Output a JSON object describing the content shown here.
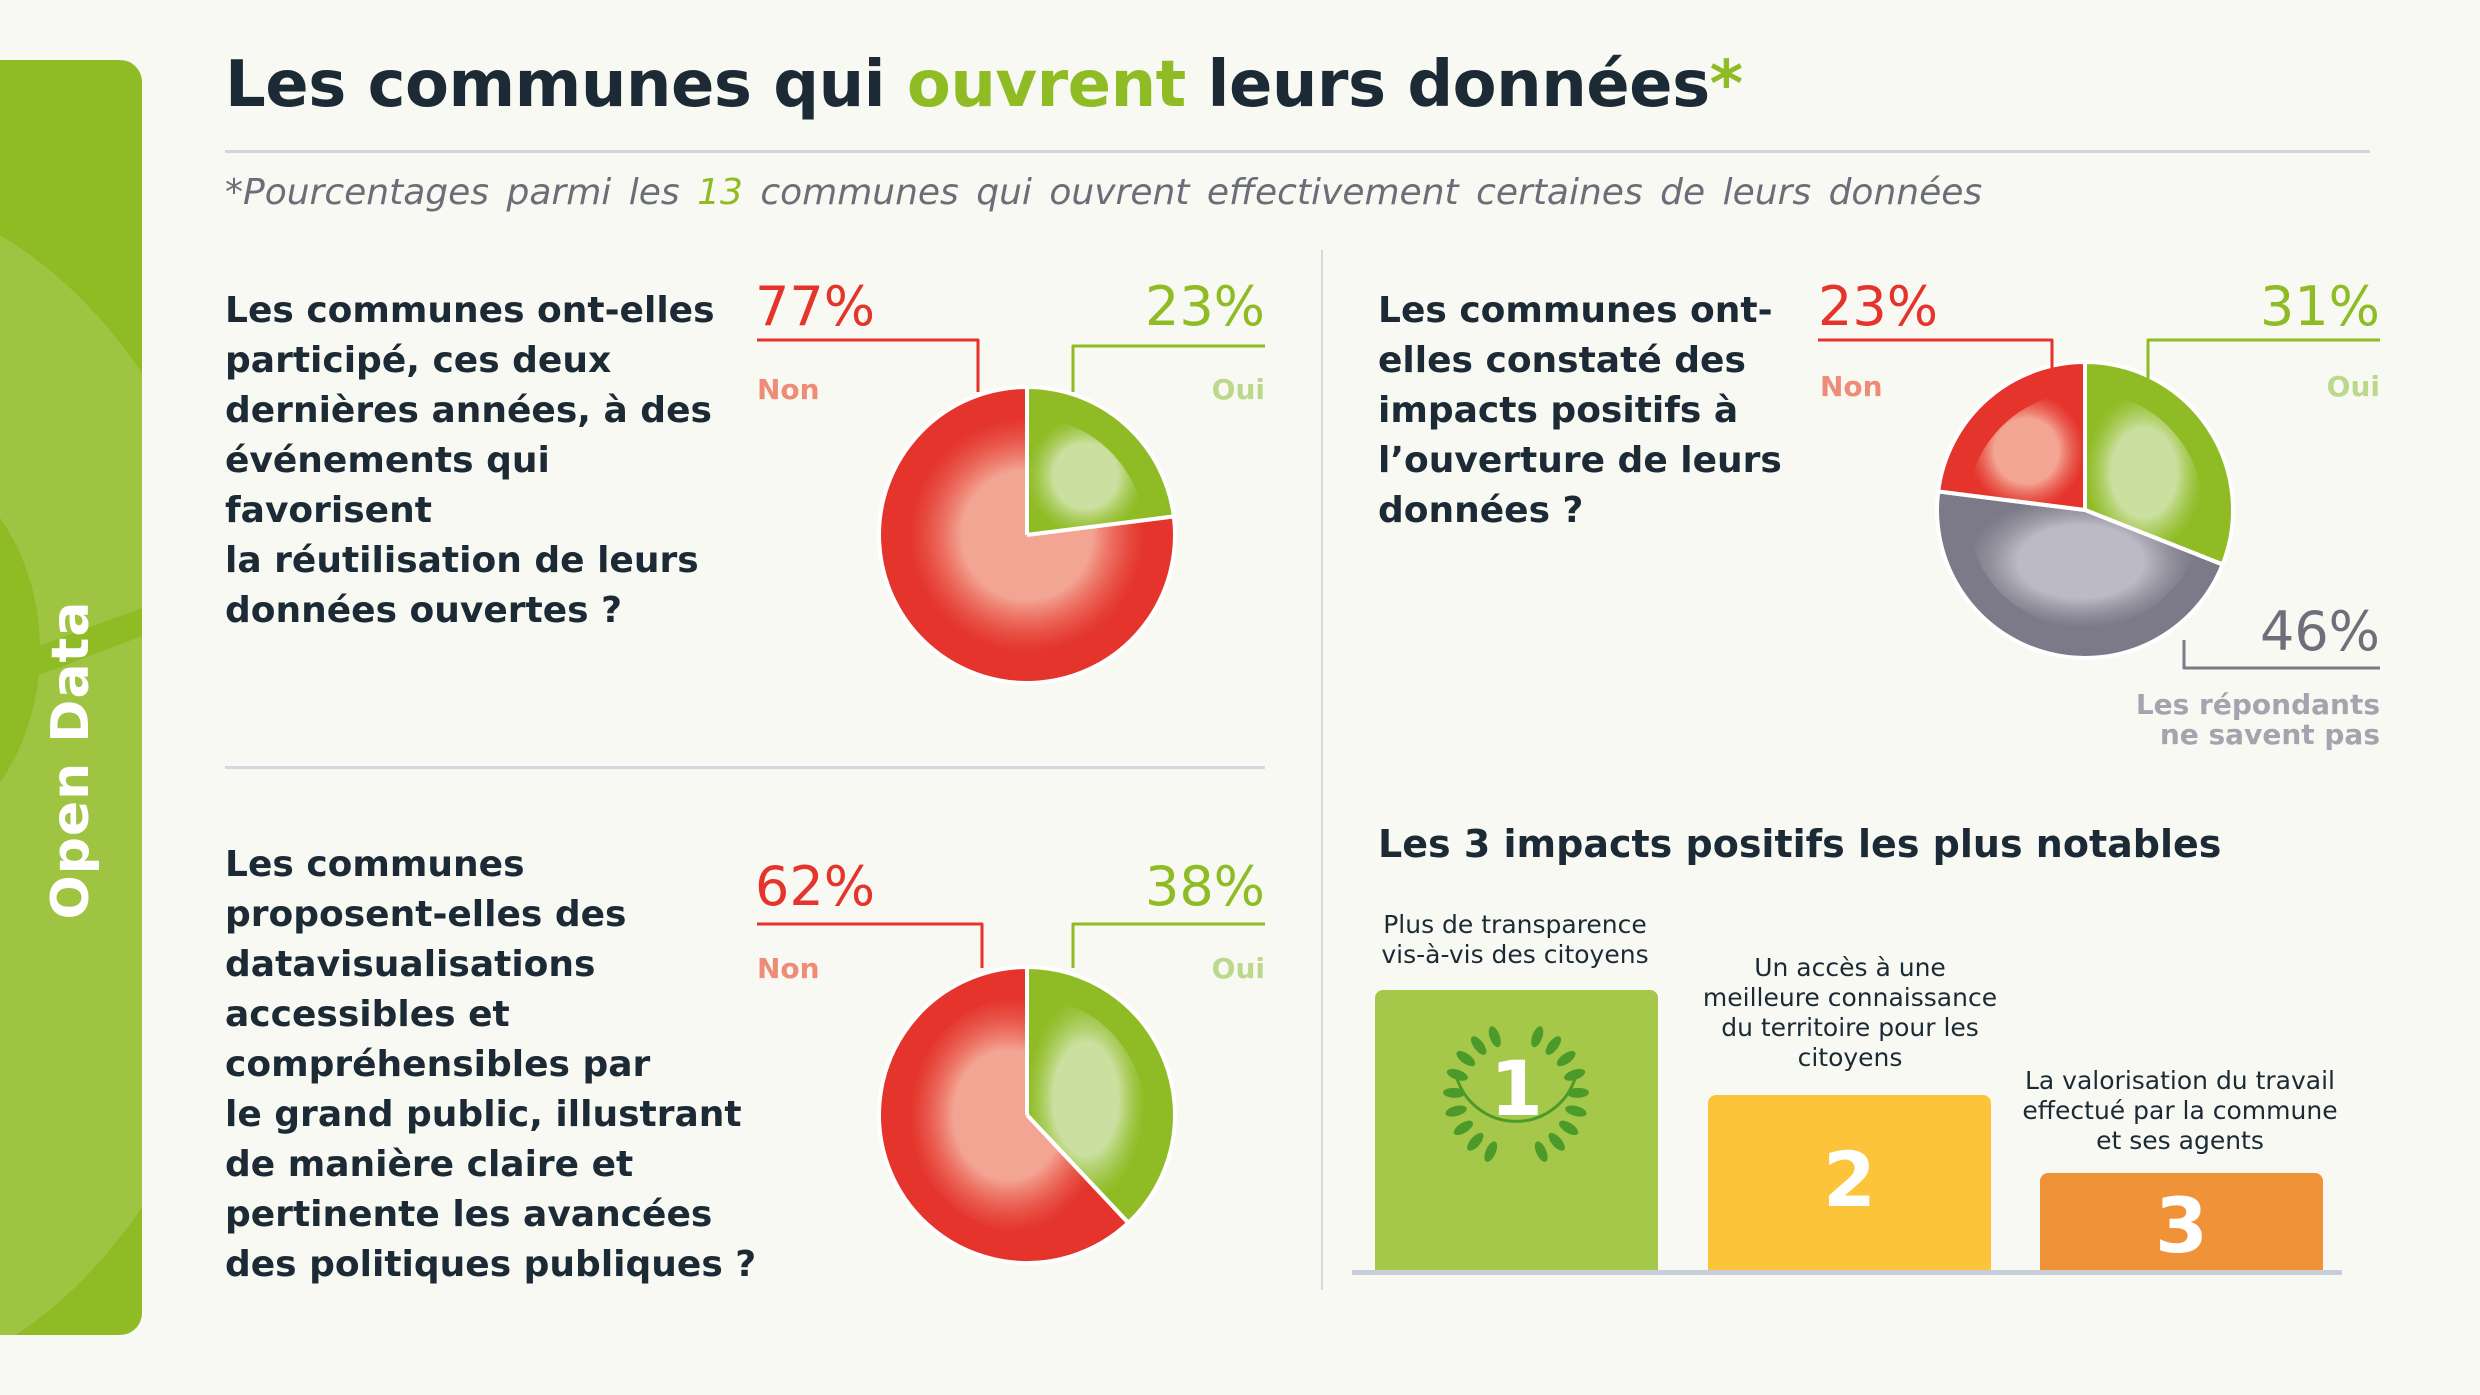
{
  "sidebar": {
    "label": "Open Data",
    "color": "#8fbc25"
  },
  "header": {
    "title_before": "Les communes qui ",
    "title_accent": "ouvrent",
    "title_after": " leurs données",
    "title_asterisk": "*",
    "subtitle_before": "*Pourcentages parmi les ",
    "subtitle_number": "13",
    "subtitle_after": " communes qui ouvrent effectivement certaines de leurs données"
  },
  "colors": {
    "red": "#e4342b",
    "red_light": "#f3a593",
    "green": "#8fbc25",
    "green_light": "#cbe0a0",
    "grey": "#7c7a88",
    "grey_light": "#bcbbc5",
    "podium_1": "#a6c84a",
    "podium_2": "#fcc43a",
    "podium_3": "#f09338"
  },
  "chart_data": [
    {
      "type": "pie",
      "title": "Les communes ont-elles participé, ces deux dernières années, à des événements qui favorisent la réutilisation de leurs données ouvertes ?",
      "slices": [
        {
          "label": "Oui",
          "value": 23,
          "display": "23%",
          "color": "green"
        },
        {
          "label": "Non",
          "value": 77,
          "display": "77%",
          "color": "red"
        }
      ]
    },
    {
      "type": "pie",
      "title": "Les communes ont-elles constaté des impacts positifs à l’ouverture de leurs données ?",
      "slices": [
        {
          "label": "Oui",
          "value": 31,
          "display": "31%",
          "color": "green"
        },
        {
          "label": "Les répondants ne savent pas",
          "value": 46,
          "display": "46%",
          "color": "grey"
        },
        {
          "label": "Non",
          "value": 23,
          "display": "23%",
          "color": "red"
        }
      ]
    },
    {
      "type": "pie",
      "title": "Les communes proposent-elles des datavisualisations accessibles et compréhensibles par le grand public, illustrant de manière claire et pertinente les avancées des politiques publiques ?",
      "slices": [
        {
          "label": "Oui",
          "value": 38,
          "display": "38%",
          "color": "green"
        },
        {
          "label": "Non",
          "value": 62,
          "display": "62%",
          "color": "red"
        }
      ]
    }
  ],
  "questions": {
    "q1_lines": [
      "Les communes ont-elles",
      "participé, ces deux",
      "dernières années, à des",
      "événements qui favorisent",
      "la réutilisation de leurs",
      "données ouvertes ?"
    ],
    "q2_lines": [
      "Les communes ont-",
      "elles constaté des",
      "impacts positifs à",
      "l’ouverture de leurs",
      "données ?"
    ],
    "q3_lines": [
      "Les communes",
      "proposent-elles des",
      "datavisualisations",
      "accessibles et",
      "compréhensibles par",
      "le grand public, illustrant",
      "de manière claire et",
      "pertinente les avancées",
      "des politiques publiques ?"
    ]
  },
  "podium": {
    "title": "Les 3 impacts positifs les plus notables",
    "items": [
      {
        "rank": "1",
        "caption_lines": [
          "Plus de transparence",
          "vis-à-vis des citoyens"
        ]
      },
      {
        "rank": "2",
        "caption_lines": [
          "Un accès à une",
          "meilleure connaissance",
          "du territoire pour les",
          "citoyens"
        ]
      },
      {
        "rank": "3",
        "caption_lines": [
          "La valorisation du travail",
          "effectué par la commune",
          "et ses agents"
        ]
      }
    ]
  }
}
